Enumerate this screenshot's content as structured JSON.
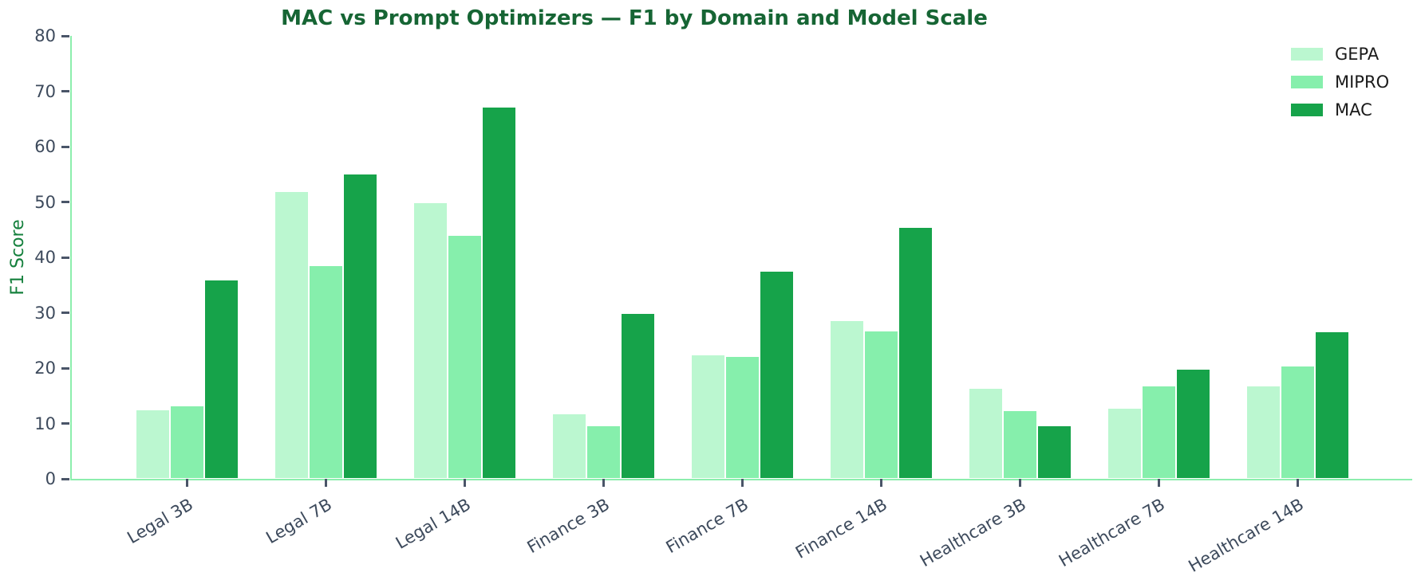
{
  "chart_data": {
    "type": "bar",
    "title": "MAC vs Prompt Optimizers — F1 by Domain and Model Scale",
    "xlabel": "",
    "ylabel": "F1 Score",
    "categories": [
      "Legal 3B",
      "Legal 7B",
      "Legal 14B",
      "Finance 3B",
      "Finance 7B",
      "Finance 14B",
      "Healthcare 3B",
      "Healthcare 7B",
      "Healthcare 14B"
    ],
    "series": [
      {
        "name": "GEPA",
        "color": "#bbf7d0",
        "values": [
          12.5,
          52.0,
          50.0,
          11.8,
          22.4,
          28.7,
          16.4,
          12.8,
          16.8
        ]
      },
      {
        "name": "MIPRO",
        "color": "#86efac",
        "values": [
          13.2,
          38.6,
          44.1,
          9.7,
          22.2,
          26.7,
          12.4,
          16.8,
          20.5
        ]
      },
      {
        "name": "MAC",
        "color": "#16a34a",
        "values": [
          36.0,
          55.1,
          67.2,
          30.0,
          37.5,
          45.4,
          9.6,
          19.9,
          26.6
        ]
      }
    ],
    "ylim": [
      0,
      80
    ],
    "y_ticks": [
      0,
      10,
      20,
      30,
      40,
      50,
      60,
      70,
      80
    ],
    "grid": false,
    "legend_position": "upper right"
  },
  "colors": {
    "title": "#166534",
    "ylabel": "#15803d",
    "tick_label": "#3d4a5c",
    "spine": "#8ceead",
    "tick_mark": "#4a5568",
    "legend_text": "#1a1a1a",
    "background": "#ffffff"
  }
}
